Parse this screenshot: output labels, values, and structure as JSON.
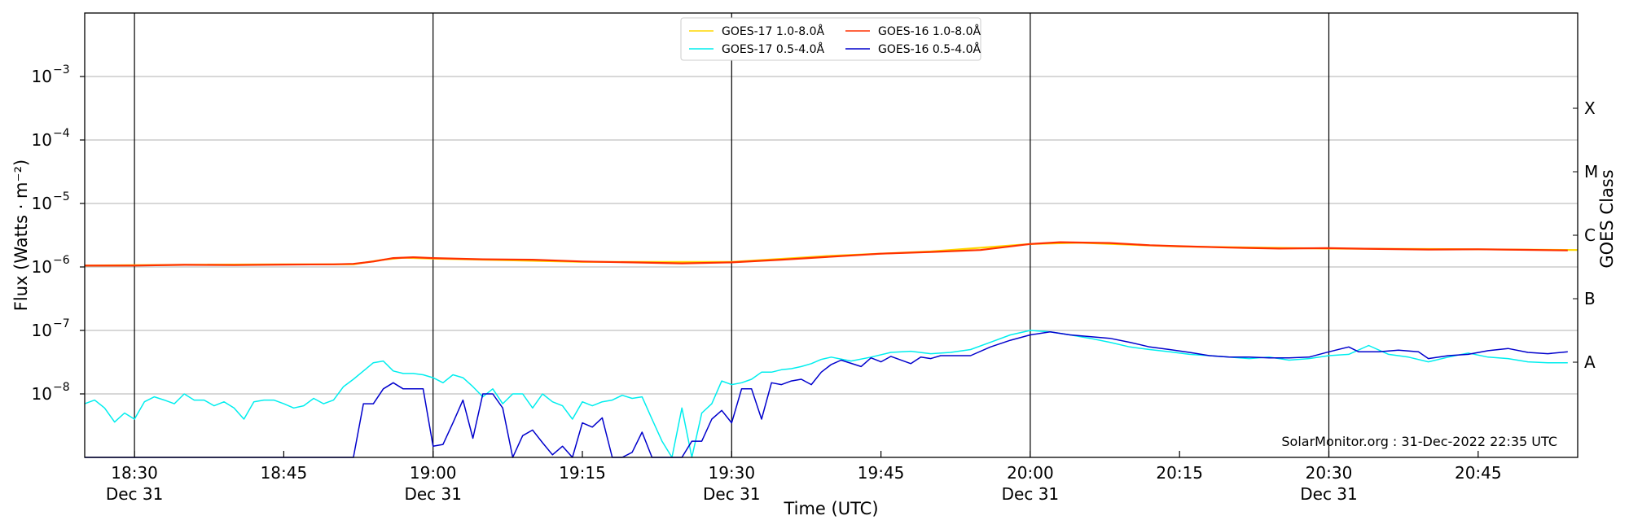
{
  "chart_data": {
    "type": "line",
    "xlabel": "Time (UTC)",
    "ylabel": "Flux (Watts · m⁻²)",
    "ylabel_right": "GOES Class",
    "y_scale": "log",
    "ylim": [
      1e-09,
      0.01
    ],
    "xlim": [
      "18:25",
      "20:55"
    ],
    "x_tick_labels": [
      {
        "time": "18:30",
        "line1": "18:30",
        "line2": "Dec 31"
      },
      {
        "time": "18:45",
        "line1": "18:45",
        "line2": ""
      },
      {
        "time": "19:00",
        "line1": "19:00",
        "line2": "Dec 31"
      },
      {
        "time": "19:15",
        "line1": "19:15",
        "line2": ""
      },
      {
        "time": "19:30",
        "line1": "19:30",
        "line2": "Dec 31"
      },
      {
        "time": "19:45",
        "line1": "19:45",
        "line2": ""
      },
      {
        "time": "20:00",
        "line1": "20:00",
        "line2": "Dec 31"
      },
      {
        "time": "20:15",
        "line1": "20:15",
        "line2": ""
      },
      {
        "time": "20:30",
        "line1": "20:30",
        "line2": "Dec 31"
      },
      {
        "time": "20:45",
        "line1": "20:45",
        "line2": ""
      }
    ],
    "y_tick_labels": [
      {
        "value": 1e-08,
        "label": "10",
        "exp": "−8"
      },
      {
        "value": 1e-07,
        "label": "10",
        "exp": "−7"
      },
      {
        "value": 1e-06,
        "label": "10",
        "exp": "−6"
      },
      {
        "value": 1e-05,
        "label": "10",
        "exp": "−5"
      },
      {
        "value": 0.0001,
        "label": "10",
        "exp": "−4"
      },
      {
        "value": 0.001,
        "label": "10",
        "exp": "−3"
      }
    ],
    "goes_classes": [
      {
        "label": "A",
        "value": 3.16e-08
      },
      {
        "label": "B",
        "value": 3.16e-07
      },
      {
        "label": "C",
        "value": 3.16e-06
      },
      {
        "label": "M",
        "value": 3.16e-05
      },
      {
        "label": "X",
        "value": 0.000316
      }
    ],
    "vertical_markers": [
      "18:30",
      "19:00",
      "19:30",
      "20:00",
      "20:30"
    ],
    "grid": "horizontal",
    "legend": {
      "placement": "top-center",
      "entries": [
        {
          "name": "GOES-17 1.0-8.0Å",
          "color": "#ffd700"
        },
        {
          "name": "GOES-16 1.0-8.0Å",
          "color": "#ff3000"
        },
        {
          "name": "GOES-17 0.5-4.0Å",
          "color": "#00eeee"
        },
        {
          "name": "GOES-16 0.5-4.0Å",
          "color": "#0000cc"
        }
      ]
    },
    "credit": "SolarMonitor.org : 31-Dec-2022 22:35 UTC",
    "series": [
      {
        "name": "GOES-17 1.0-8.0Å",
        "color": "#ffd700",
        "points": [
          [
            "18:25",
            1.05e-06
          ],
          [
            "18:35",
            1.08e-06
          ],
          [
            "18:45",
            1.1e-06
          ],
          [
            "18:52",
            1.1e-06
          ],
          [
            "18:55",
            1.3e-06
          ],
          [
            "18:57",
            1.4e-06
          ],
          [
            "19:00",
            1.35e-06
          ],
          [
            "19:15",
            1.2e-06
          ],
          [
            "19:30",
            1.2e-06
          ],
          [
            "19:40",
            1.5e-06
          ],
          [
            "19:50",
            1.75e-06
          ],
          [
            "20:00",
            2.3e-06
          ],
          [
            "20:05",
            2.4e-06
          ],
          [
            "20:15",
            2.1e-06
          ],
          [
            "20:30",
            1.95e-06
          ],
          [
            "20:45",
            1.9e-06
          ],
          [
            "20:55",
            1.85e-06
          ]
        ]
      },
      {
        "name": "GOES-16 1.0-8.0Å",
        "color": "#ff3000",
        "points": [
          [
            "18:25",
            1.05e-06
          ],
          [
            "18:30",
            1.05e-06
          ],
          [
            "18:35",
            1.08e-06
          ],
          [
            "18:40",
            1.07e-06
          ],
          [
            "18:45",
            1.09e-06
          ],
          [
            "18:50",
            1.1e-06
          ],
          [
            "18:52",
            1.12e-06
          ],
          [
            "18:54",
            1.22e-06
          ],
          [
            "18:56",
            1.38e-06
          ],
          [
            "18:58",
            1.42e-06
          ],
          [
            "19:00",
            1.38e-06
          ],
          [
            "19:05",
            1.32e-06
          ],
          [
            "19:10",
            1.3e-06
          ],
          [
            "19:15",
            1.22e-06
          ],
          [
            "19:20",
            1.18e-06
          ],
          [
            "19:25",
            1.14e-06
          ],
          [
            "19:30",
            1.18e-06
          ],
          [
            "19:35",
            1.3e-06
          ],
          [
            "19:40",
            1.45e-06
          ],
          [
            "19:45",
            1.62e-06
          ],
          [
            "19:50",
            1.72e-06
          ],
          [
            "19:55",
            1.85e-06
          ],
          [
            "20:00",
            2.3e-06
          ],
          [
            "20:03",
            2.45e-06
          ],
          [
            "20:08",
            2.38e-06
          ],
          [
            "20:12",
            2.2e-06
          ],
          [
            "20:15",
            2.12e-06
          ],
          [
            "20:20",
            2.02e-06
          ],
          [
            "20:25",
            1.95e-06
          ],
          [
            "20:30",
            1.98e-06
          ],
          [
            "20:35",
            1.92e-06
          ],
          [
            "20:40",
            1.88e-06
          ],
          [
            "20:45",
            1.9e-06
          ],
          [
            "20:50",
            1.86e-06
          ],
          [
            "20:54",
            1.82e-06
          ]
        ]
      },
      {
        "name": "GOES-17 0.5-4.0Å",
        "color": "#00eeee",
        "points": [
          [
            "18:25",
            7e-09
          ],
          [
            "18:26",
            8e-09
          ],
          [
            "18:27",
            6e-09
          ],
          [
            "18:28",
            3.6e-09
          ],
          [
            "18:29",
            5e-09
          ],
          [
            "18:30",
            4e-09
          ],
          [
            "18:31",
            7.5e-09
          ],
          [
            "18:32",
            9e-09
          ],
          [
            "18:33",
            8e-09
          ],
          [
            "18:34",
            7e-09
          ],
          [
            "18:35",
            1e-08
          ],
          [
            "18:36",
            8e-09
          ],
          [
            "18:37",
            8e-09
          ],
          [
            "18:38",
            6.5e-09
          ],
          [
            "18:39",
            7.5e-09
          ],
          [
            "18:40",
            6e-09
          ],
          [
            "18:41",
            4e-09
          ],
          [
            "18:42",
            7.5e-09
          ],
          [
            "18:43",
            8e-09
          ],
          [
            "18:44",
            8e-09
          ],
          [
            "18:45",
            7e-09
          ],
          [
            "18:46",
            6e-09
          ],
          [
            "18:47",
            6.5e-09
          ],
          [
            "18:48",
            8.5e-09
          ],
          [
            "18:49",
            7e-09
          ],
          [
            "18:50",
            8e-09
          ],
          [
            "18:51",
            1.3e-08
          ],
          [
            "18:52",
            1.7e-08
          ],
          [
            "18:53",
            2.3e-08
          ],
          [
            "18:54",
            3.1e-08
          ],
          [
            "18:55",
            3.3e-08
          ],
          [
            "18:56",
            2.3e-08
          ],
          [
            "18:57",
            2.1e-08
          ],
          [
            "18:58",
            2.1e-08
          ],
          [
            "18:59",
            2e-08
          ],
          [
            "19:00",
            1.8e-08
          ],
          [
            "19:01",
            1.5e-08
          ],
          [
            "19:02",
            2e-08
          ],
          [
            "19:03",
            1.8e-08
          ],
          [
            "19:04",
            1.3e-08
          ],
          [
            "19:05",
            9e-09
          ],
          [
            "19:06",
            1.2e-08
          ],
          [
            "19:07",
            7e-09
          ],
          [
            "19:08",
            1e-08
          ],
          [
            "19:09",
            1e-08
          ],
          [
            "19:10",
            6e-09
          ],
          [
            "19:11",
            1e-08
          ],
          [
            "19:12",
            7.5e-09
          ],
          [
            "19:13",
            6.5e-09
          ],
          [
            "19:14",
            4e-09
          ],
          [
            "19:15",
            7.5e-09
          ],
          [
            "19:16",
            6.5e-09
          ],
          [
            "19:17",
            7.5e-09
          ],
          [
            "19:18",
            8e-09
          ],
          [
            "19:19",
            9.5e-09
          ],
          [
            "19:20",
            8.5e-09
          ],
          [
            "19:21",
            9e-09
          ],
          [
            "19:22",
            4e-09
          ],
          [
            "19:23",
            1.8e-09
          ],
          [
            "19:24",
            1e-09
          ],
          [
            "19:25",
            6e-09
          ],
          [
            "19:26",
            1e-09
          ],
          [
            "19:27",
            5e-09
          ],
          [
            "19:28",
            7e-09
          ],
          [
            "19:29",
            1.6e-08
          ],
          [
            "19:30",
            1.4e-08
          ],
          [
            "19:31",
            1.5e-08
          ],
          [
            "19:32",
            1.7e-08
          ],
          [
            "19:33",
            2.2e-08
          ],
          [
            "19:34",
            2.2e-08
          ],
          [
            "19:35",
            2.4e-08
          ],
          [
            "19:36",
            2.5e-08
          ],
          [
            "19:37",
            2.7e-08
          ],
          [
            "19:38",
            3e-08
          ],
          [
            "19:39",
            3.5e-08
          ],
          [
            "19:40",
            3.8e-08
          ],
          [
            "19:42",
            3.3e-08
          ],
          [
            "19:44",
            3.8e-08
          ],
          [
            "19:46",
            4.5e-08
          ],
          [
            "19:48",
            4.7e-08
          ],
          [
            "19:50",
            4.3e-08
          ],
          [
            "19:52",
            4.5e-08
          ],
          [
            "19:54",
            5e-08
          ],
          [
            "19:56",
            6.5e-08
          ],
          [
            "19:58",
            8.5e-08
          ],
          [
            "20:00",
            1e-07
          ],
          [
            "20:02",
            9.5e-08
          ],
          [
            "20:04",
            8.5e-08
          ],
          [
            "20:06",
            7.5e-08
          ],
          [
            "20:08",
            6.5e-08
          ],
          [
            "20:10",
            5.5e-08
          ],
          [
            "20:12",
            5e-08
          ],
          [
            "20:14",
            4.6e-08
          ],
          [
            "20:16",
            4.2e-08
          ],
          [
            "20:18",
            4e-08
          ],
          [
            "20:20",
            3.8e-08
          ],
          [
            "20:22",
            3.6e-08
          ],
          [
            "20:24",
            3.8e-08
          ],
          [
            "20:26",
            3.4e-08
          ],
          [
            "20:28",
            3.6e-08
          ],
          [
            "20:30",
            4e-08
          ],
          [
            "20:32",
            4.2e-08
          ],
          [
            "20:34",
            5.8e-08
          ],
          [
            "20:36",
            4.2e-08
          ],
          [
            "20:38",
            3.8e-08
          ],
          [
            "20:40",
            3.2e-08
          ],
          [
            "20:42",
            3.8e-08
          ],
          [
            "20:44",
            4.4e-08
          ],
          [
            "20:46",
            3.8e-08
          ],
          [
            "20:48",
            3.6e-08
          ],
          [
            "20:50",
            3.2e-08
          ],
          [
            "20:52",
            3.1e-08
          ],
          [
            "20:54",
            3.1e-08
          ]
        ]
      },
      {
        "name": "GOES-16 0.5-4.0Å",
        "color": "#0000cc",
        "points": [
          [
            "18:25",
            1e-09
          ],
          [
            "18:50",
            1e-09
          ],
          [
            "18:52",
            1e-09
          ],
          [
            "18:53",
            7e-09
          ],
          [
            "18:54",
            7e-09
          ],
          [
            "18:55",
            1.2e-08
          ],
          [
            "18:56",
            1.5e-08
          ],
          [
            "18:57",
            1.2e-08
          ],
          [
            "18:58",
            1.2e-08
          ],
          [
            "18:59",
            1.2e-08
          ],
          [
            "19:00",
            1.5e-09
          ],
          [
            "19:01",
            1.6e-09
          ],
          [
            "19:02",
            3.5e-09
          ],
          [
            "19:03",
            8e-09
          ],
          [
            "19:04",
            2e-09
          ],
          [
            "19:05",
            1e-08
          ],
          [
            "19:06",
            1e-08
          ],
          [
            "19:07",
            6e-09
          ],
          [
            "19:08",
            1e-09
          ],
          [
            "19:09",
            2.2e-09
          ],
          [
            "19:10",
            2.7e-09
          ],
          [
            "19:11",
            1.7e-09
          ],
          [
            "19:12",
            1.1e-09
          ],
          [
            "19:13",
            1.5e-09
          ],
          [
            "19:14",
            1e-09
          ],
          [
            "19:15",
            3.5e-09
          ],
          [
            "19:16",
            3e-09
          ],
          [
            "19:17",
            4.2e-09
          ],
          [
            "19:18",
            1e-09
          ],
          [
            "19:19",
            1e-09
          ],
          [
            "19:20",
            1.2e-09
          ],
          [
            "19:21",
            2.5e-09
          ],
          [
            "19:22",
            1e-09
          ],
          [
            "19:25",
            1e-09
          ],
          [
            "19:26",
            1.8e-09
          ],
          [
            "19:27",
            1.8e-09
          ],
          [
            "19:28",
            4e-09
          ],
          [
            "19:29",
            5.5e-09
          ],
          [
            "19:30",
            3.5e-09
          ],
          [
            "19:31",
            1.2e-08
          ],
          [
            "19:32",
            1.2e-08
          ],
          [
            "19:33",
            4e-09
          ],
          [
            "19:34",
            1.5e-08
          ],
          [
            "19:35",
            1.4e-08
          ],
          [
            "19:36",
            1.6e-08
          ],
          [
            "19:37",
            1.7e-08
          ],
          [
            "19:38",
            1.4e-08
          ],
          [
            "19:39",
            2.2e-08
          ],
          [
            "19:40",
            2.9e-08
          ],
          [
            "19:41",
            3.4e-08
          ],
          [
            "19:43",
            2.7e-08
          ],
          [
            "19:44",
            3.7e-08
          ],
          [
            "19:45",
            3.2e-08
          ],
          [
            "19:46",
            3.9e-08
          ],
          [
            "19:48",
            3e-08
          ],
          [
            "19:49",
            3.8e-08
          ],
          [
            "19:50",
            3.6e-08
          ],
          [
            "19:51",
            4e-08
          ],
          [
            "19:54",
            4e-08
          ],
          [
            "19:56",
            5.5e-08
          ],
          [
            "19:58",
            7e-08
          ],
          [
            "20:00",
            8.5e-08
          ],
          [
            "20:02",
            9.5e-08
          ],
          [
            "20:04",
            8.5e-08
          ],
          [
            "20:06",
            8e-08
          ],
          [
            "20:08",
            7.5e-08
          ],
          [
            "20:10",
            6.5e-08
          ],
          [
            "20:12",
            5.5e-08
          ],
          [
            "20:14",
            5e-08
          ],
          [
            "20:16",
            4.5e-08
          ],
          [
            "20:18",
            4e-08
          ],
          [
            "20:20",
            3.8e-08
          ],
          [
            "20:22",
            3.8e-08
          ],
          [
            "20:24",
            3.7e-08
          ],
          [
            "20:26",
            3.7e-08
          ],
          [
            "20:28",
            3.8e-08
          ],
          [
            "20:30",
            4.6e-08
          ],
          [
            "20:32",
            5.5e-08
          ],
          [
            "20:33",
            4.6e-08
          ],
          [
            "20:35",
            4.6e-08
          ],
          [
            "20:37",
            4.9e-08
          ],
          [
            "20:39",
            4.6e-08
          ],
          [
            "20:40",
            3.6e-08
          ],
          [
            "20:42",
            4e-08
          ],
          [
            "20:44",
            4.2e-08
          ],
          [
            "20:46",
            4.8e-08
          ],
          [
            "20:48",
            5.2e-08
          ],
          [
            "20:50",
            4.5e-08
          ],
          [
            "20:52",
            4.3e-08
          ],
          [
            "20:54",
            4.6e-08
          ]
        ]
      }
    ]
  }
}
